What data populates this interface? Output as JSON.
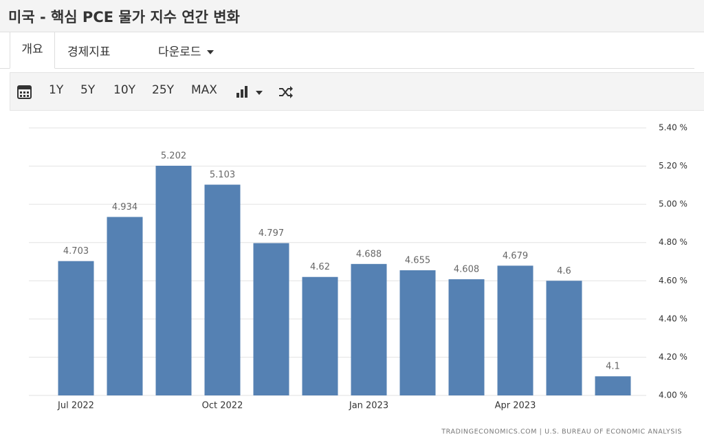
{
  "header": {
    "title": "미국 - 핵심 PCE 물가 지수 연간 변화"
  },
  "tabs": [
    "개요",
    "경제지표",
    "다운로드"
  ],
  "toolbar": {
    "ranges": [
      "1Y",
      "5Y",
      "10Y",
      "25Y",
      "MAX"
    ]
  },
  "chart_data": {
    "type": "bar",
    "categories": [
      "Jul 2022",
      null,
      null,
      "Oct 2022",
      null,
      null,
      "Jan 2023",
      null,
      null,
      "Apr 2023",
      null,
      null
    ],
    "values": [
      4.703,
      4.934,
      5.202,
      5.103,
      4.797,
      4.62,
      4.688,
      4.655,
      4.608,
      4.679,
      4.6,
      4.1
    ],
    "color": "#5581b3",
    "ylim": [
      4.0,
      5.4
    ],
    "yticks": [
      {
        "value": 4.0,
        "label": "4.00 %"
      },
      {
        "value": 4.2,
        "label": "4.20 %"
      },
      {
        "value": 4.4,
        "label": "4.40 %"
      },
      {
        "value": 4.6,
        "label": "4.60 %"
      },
      {
        "value": 4.8,
        "label": "4.80 %"
      },
      {
        "value": 5.0,
        "label": "5.00 %"
      },
      {
        "value": 5.2,
        "label": "5.20 %"
      },
      {
        "value": 5.4,
        "label": "5.40 %"
      }
    ],
    "grid": true,
    "source": "TRADINGECONOMICS.COM | U.S. BUREAU OF ECONOMIC ANALYSIS"
  }
}
